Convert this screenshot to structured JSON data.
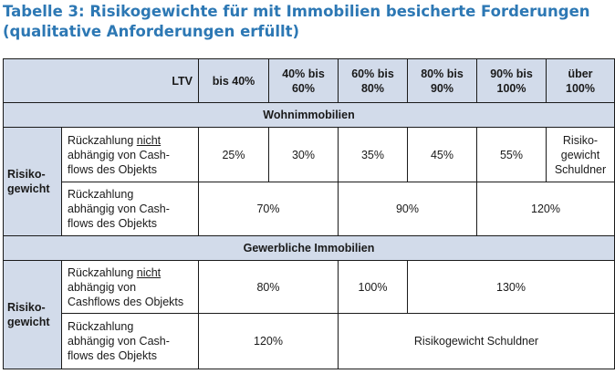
{
  "title": {
    "line1": "Tabelle 3: Risikogewichte für mit Immobilien besicherte Forderungen",
    "line2": "(qualitative Anforderungen erfüllt)"
  },
  "header": {
    "ltv": "LTV",
    "cols": [
      {
        "l1": "bis 40%",
        "l2": ""
      },
      {
        "l1": "40% bis",
        "l2": "60%"
      },
      {
        "l1": "60% bis",
        "l2": "80%"
      },
      {
        "l1": "80% bis",
        "l2": "90%"
      },
      {
        "l1": "90% bis",
        "l2": "100%"
      },
      {
        "l1": "über",
        "l2": "100%"
      }
    ]
  },
  "wohn": {
    "heading": "Wohnimmobilien",
    "label": {
      "l1": "Risiko-",
      "l2": "gewicht"
    },
    "row1": {
      "desc": {
        "pre": "Rückzahlung ",
        "u": "nicht",
        "l2": "abhängig von Cash-",
        "l3": "flows des Objekts"
      },
      "values": [
        "25%",
        "30%",
        "35%",
        "45%",
        "55%"
      ],
      "last": {
        "l1": "Risiko-",
        "l2": "gewicht",
        "l3": "Schuldner"
      }
    },
    "row2": {
      "desc": {
        "l1": "Rückzahlung",
        "l2": "abhängig von Cash-",
        "l3": "flows des Objekts"
      },
      "values": [
        "70%",
        "90%",
        "120%"
      ]
    }
  },
  "gewerbe": {
    "heading": "Gewerbliche Immobilien",
    "label": {
      "l1": "Risiko-",
      "l2": "gewicht"
    },
    "row1": {
      "desc": {
        "pre": "Rückzahlung ",
        "u": "nicht",
        "l2": "abhängig von",
        "l3": "Cashflows des Objekts"
      },
      "values": [
        "80%",
        "100%",
        "130%"
      ]
    },
    "row2": {
      "desc": {
        "l1": "Rückzahlung",
        "l2": "abhängig von Cash-",
        "l3": "flows des Objekts"
      },
      "values": [
        "120%",
        "Risikogewicht Schuldner"
      ]
    }
  }
}
